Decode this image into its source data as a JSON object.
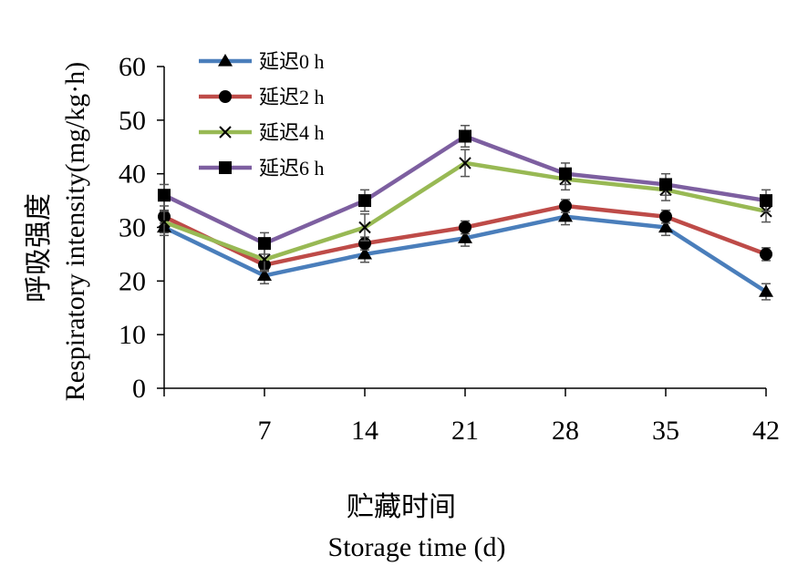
{
  "chart_data": {
    "type": "line",
    "x": [
      0,
      7,
      14,
      21,
      28,
      35,
      42
    ],
    "x_tick_labels": [
      "7",
      "14",
      "21",
      "28",
      "35",
      "42"
    ],
    "y_tick_labels": [
      "0",
      "10",
      "20",
      "30",
      "40",
      "50",
      "60"
    ],
    "ylim": [
      0,
      60
    ],
    "xlabel_cn": "贮藏时间",
    "xlabel_en": "Storage time (d)",
    "ylabel_cn": "呼吸强度",
    "ylabel_en": "Respiratory intensity(mg/kg·h)",
    "legend_position": "top-left",
    "series": [
      {
        "name": "延迟0 h",
        "color": "#4A7EBB",
        "marker": "triangle",
        "values": [
          30,
          21,
          25,
          28,
          32,
          30,
          18
        ],
        "errors": [
          1.5,
          1.5,
          1.5,
          1.5,
          1.5,
          1.5,
          1.5
        ]
      },
      {
        "name": "延迟2 h",
        "color": "#BE4B48",
        "marker": "circle",
        "values": [
          32,
          23,
          27,
          30,
          34,
          32,
          25
        ],
        "errors": [
          1.2,
          1.2,
          1.2,
          1.2,
          1.2,
          1.2,
          1.2
        ]
      },
      {
        "name": "延迟4 h",
        "color": "#98B954",
        "marker": "x",
        "values": [
          31,
          24,
          30,
          42,
          39,
          37,
          33
        ],
        "errors": [
          2.0,
          2.0,
          2.5,
          2.5,
          2.0,
          2.0,
          2.0
        ]
      },
      {
        "name": "延迟6 h",
        "color": "#7D5FA0",
        "marker": "square",
        "values": [
          36,
          27,
          35,
          47,
          40,
          38,
          35
        ],
        "errors": [
          2.0,
          2.0,
          2.0,
          2.0,
          2.0,
          2.0,
          2.0
        ]
      }
    ]
  }
}
